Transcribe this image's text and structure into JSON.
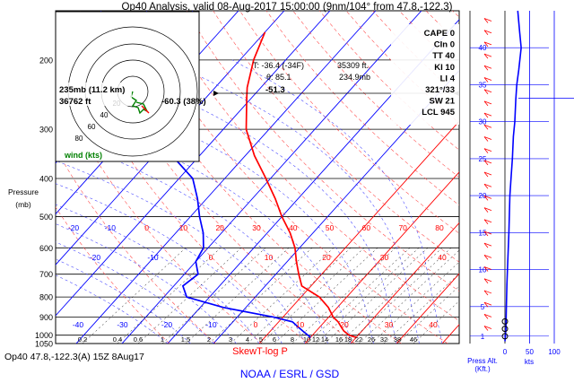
{
  "title": "Op40 Analysis, valid 08-Aug-2017 15:00:00 (9nm/104° from 47.8,-122.3)",
  "footer_left": "Op40 47.8,-122.3(A) 15Z 8Aug17",
  "footer_center": "NOAA / ESRL / GSD",
  "skewt_label": "SkewT-log P",
  "pressure_label": [
    "Pressure",
    "(mb)"
  ],
  "pressure_ticks": [
    "200",
    "300",
    "400",
    "500",
    "600",
    "700",
    "800",
    "900",
    "1000",
    "1050"
  ],
  "indices": [
    "CAPE 0",
    "CIn 0",
    "TT 40",
    "KI 10",
    "LI 4",
    "321°/33",
    "SW 21",
    "LCL 945"
  ],
  "cursor_readout": {
    "temp": "T: -36.4 (-34F)",
    "theta": "θ: 85.1",
    "height": "35309 ft.",
    "pressure": "234.9mb",
    "dewpoint": "-51.3"
  },
  "hodograph": {
    "level": "235mb (11.2 km)",
    "height": "36762 ft",
    "wind_value": "-60.3 (38%)",
    "ring_labels": [
      "20",
      "40",
      "60",
      "80"
    ],
    "label": "wind (kts)"
  },
  "isotherm_labels_upper": [
    "-20",
    "-10",
    "0",
    "10",
    "20",
    "30",
    "40",
    "50",
    "60",
    "70",
    "80"
  ],
  "isotherm_labels_lower": [
    "-20",
    "-10",
    "0",
    "10",
    "20",
    "30",
    "40"
  ],
  "isotherm_labels_bottom": [
    "-40",
    "-30",
    "-20",
    "-10",
    "0",
    "10",
    "20",
    "30",
    "40"
  ],
  "mixing_ratio_labels": [
    "0.2",
    "0.4",
    "0.6",
    "1",
    "1.5",
    "2",
    "3",
    "4",
    "5",
    "6",
    "8",
    "10",
    "12",
    "14",
    "16",
    "18",
    "22",
    "26",
    "32",
    "38",
    "46"
  ],
  "wind_profile": {
    "alt_ticks": [
      "1",
      "5",
      "10",
      "15",
      "20",
      "25",
      "30",
      "35",
      "40"
    ],
    "speed_ticks": [
      "0",
      "50",
      "100"
    ],
    "xlabel": [
      "Press Alt.",
      "(Kft.)"
    ],
    "units": "kts"
  },
  "chart_data": [
    {
      "type": "line",
      "name": "skew-t",
      "yscale": "log",
      "ylabel": "Pressure (mb)",
      "ylim": [
        1050,
        150
      ],
      "series": [
        {
          "color": "#ff0000",
          "points_p_t": [
            [
              1013,
              20
            ],
            [
              1000,
              18
            ],
            [
              975,
              16
            ],
            [
              950,
              14.5
            ],
            [
              925,
              13
            ],
            [
              900,
              11
            ],
            [
              850,
              8
            ],
            [
              800,
              4
            ],
            [
              750,
              -2
            ],
            [
              700,
              -5
            ],
            [
              650,
              -8
            ],
            [
              600,
              -11
            ],
            [
              550,
              -15
            ],
            [
              500,
              -20
            ],
            [
              450,
              -25
            ],
            [
              400,
              -31
            ],
            [
              350,
              -38
            ],
            [
              300,
              -45
            ],
            [
              250,
              -51
            ],
            [
              235,
              -53
            ],
            [
              200,
              -57
            ],
            [
              170,
              -60
            ]
          ]
        },
        {
          "color": "#0000ff",
          "points_p_t": [
            [
              1013,
              10
            ],
            [
              1000,
              9
            ],
            [
              975,
              7
            ],
            [
              950,
              5
            ],
            [
              925,
              3
            ],
            [
              900,
              -2
            ],
            [
              850,
              -15
            ],
            [
              800,
              -25
            ],
            [
              750,
              -28
            ],
            [
              700,
              -27
            ],
            [
              650,
              -30
            ],
            [
              600,
              -31
            ],
            [
              550,
              -34
            ],
            [
              500,
              -38
            ],
            [
              450,
              -42
            ],
            [
              400,
              -47
            ],
            [
              350,
              -56
            ],
            [
              300,
              -62
            ],
            [
              250,
              -68
            ],
            [
              235,
              -72
            ],
            [
              200,
              -80
            ],
            [
              170,
              -85
            ]
          ]
        }
      ]
    },
    {
      "type": "line",
      "name": "wind speed profile",
      "x_unit": "kts",
      "y_unit": "Kft.",
      "xlim": [
        0,
        115
      ],
      "ylim": [
        0,
        45
      ],
      "series": [
        {
          "color": "#0000ff",
          "points_alt_speed": [
            [
              0.3,
              0
            ],
            [
              2,
              2
            ],
            [
              5,
              3
            ],
            [
              8,
              4
            ],
            [
              10,
              5
            ],
            [
              15,
              8
            ],
            [
              20,
              10
            ],
            [
              22,
              12
            ],
            [
              25,
              15
            ],
            [
              28,
              17
            ],
            [
              30,
              20
            ],
            [
              33,
              22
            ],
            [
              35,
              24
            ],
            [
              37,
              28
            ],
            [
              40,
              33
            ],
            [
              42,
              30
            ],
            [
              45,
              26
            ]
          ]
        }
      ]
    }
  ],
  "colors": {
    "temperature": "#ff0000",
    "dewpoint": "#0000ff",
    "isotherm_warm": "#ff0000",
    "isotherm_cold": "#0000ff",
    "hodograph": "#008000"
  }
}
